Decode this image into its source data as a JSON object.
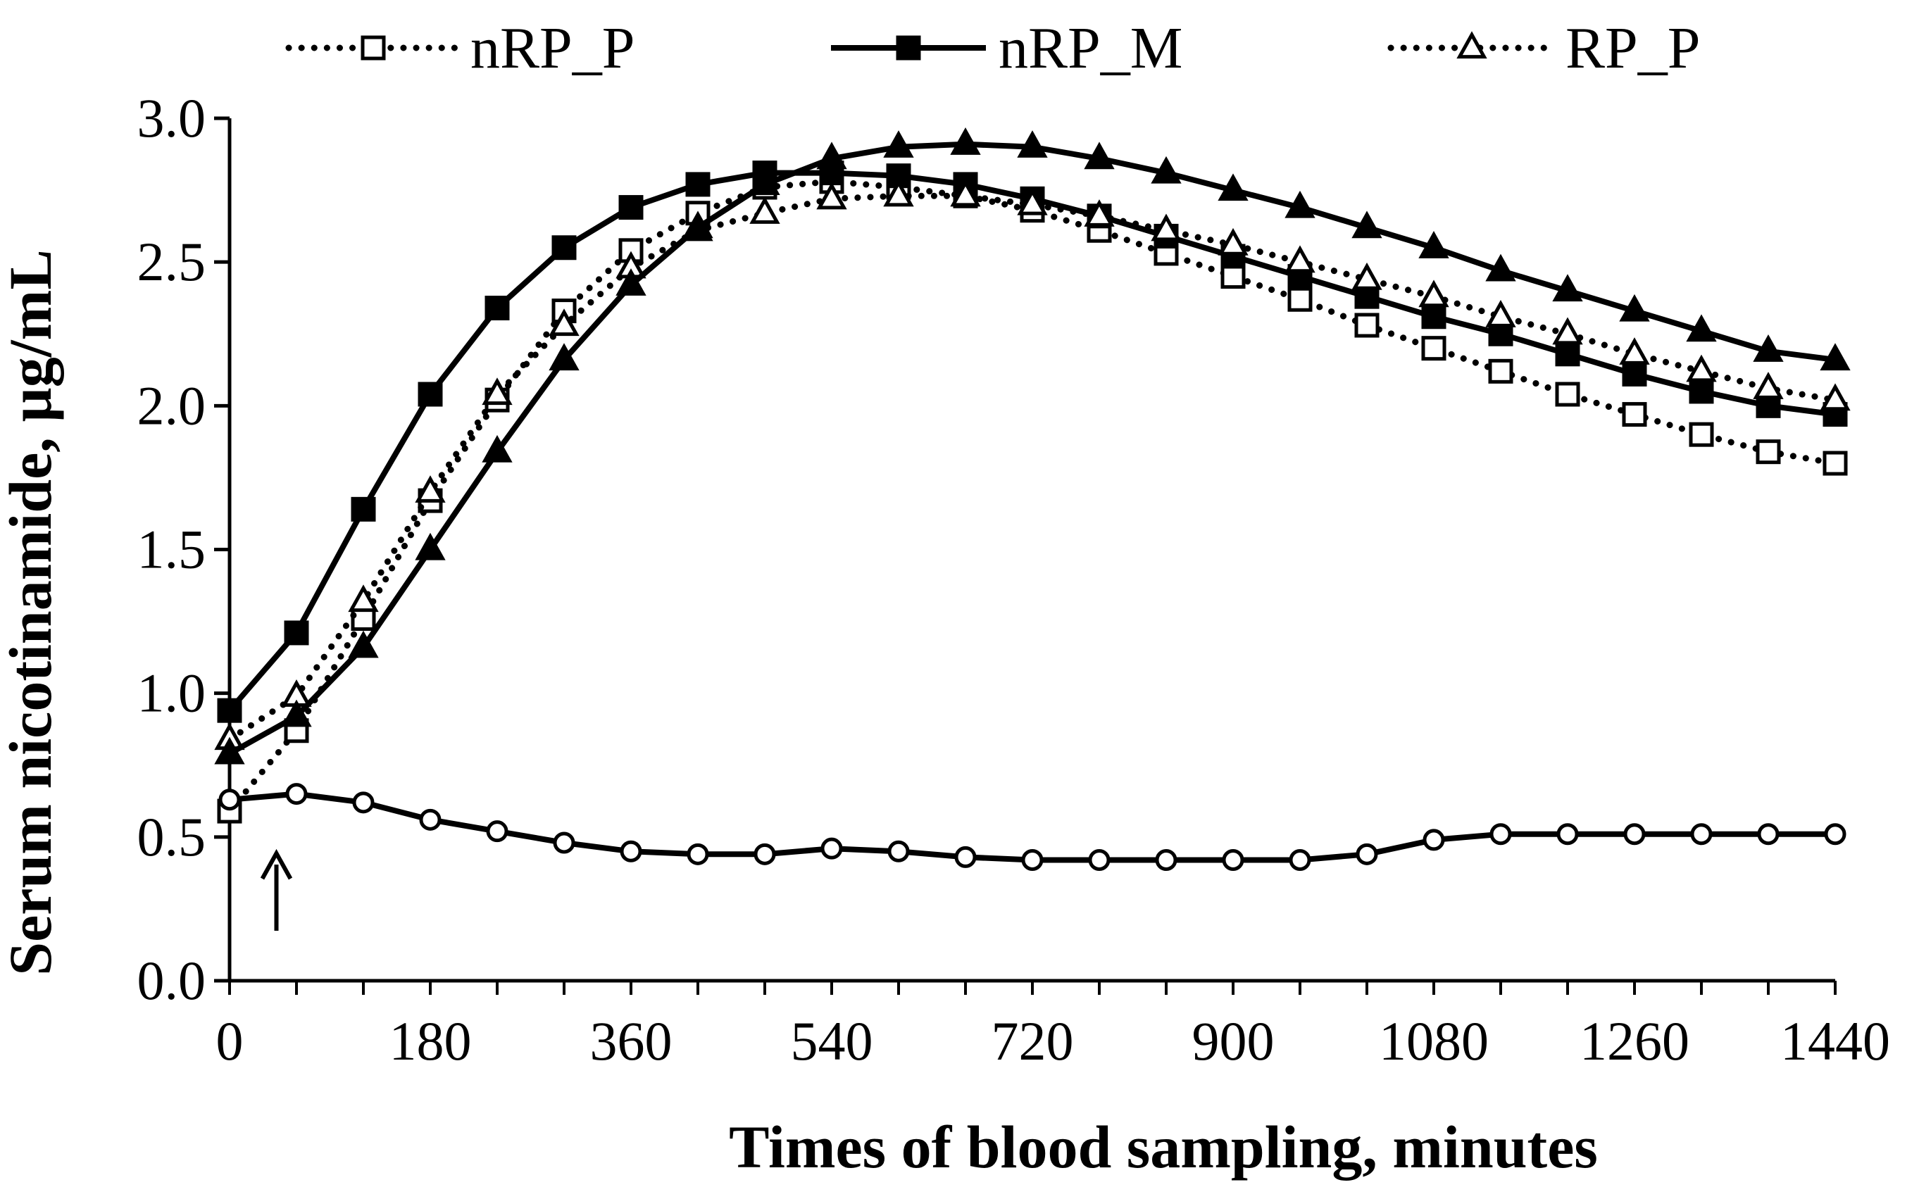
{
  "chart_data": {
    "type": "line",
    "title": "",
    "xlabel": "Times of blood sampling, minutes",
    "ylabel": "Serum nicotinamide, µg/mL",
    "xlim": [
      0,
      1440
    ],
    "ylim": [
      0,
      3.0
    ],
    "xticks": [
      0,
      180,
      360,
      540,
      720,
      900,
      1080,
      1260,
      1440
    ],
    "xtick_labels": [
      "0",
      "180",
      "360",
      "540",
      "720",
      "900",
      "1080",
      "1260",
      "1440"
    ],
    "yticks": [
      0,
      0.5,
      1.0,
      1.5,
      2.0,
      2.5,
      3.0
    ],
    "ytick_labels": [
      "0.0",
      "0.5",
      "1.0",
      "1.5",
      "2.0",
      "2.5",
      "3.0"
    ],
    "grid": false,
    "legend_position": "top",
    "annotation": "arrow at dosing time",
    "annotation_x": 42,
    "series": [
      {
        "name": "nRP_P",
        "line_style": "dotted",
        "marker": "open-square",
        "x": [
          0,
          60,
          120,
          180,
          240,
          300,
          360,
          420,
          480,
          540,
          600,
          660,
          720,
          780,
          840,
          900,
          960,
          1020,
          1080,
          1140,
          1200,
          1260,
          1320,
          1380,
          1440
        ],
        "values": [
          0.59,
          0.87,
          1.26,
          1.67,
          2.02,
          2.33,
          2.54,
          2.67,
          2.76,
          2.78,
          2.76,
          2.73,
          2.68,
          2.61,
          2.53,
          2.45,
          2.37,
          2.28,
          2.2,
          2.12,
          2.04,
          1.97,
          1.9,
          1.84,
          1.8
        ]
      },
      {
        "name": "nRP_M",
        "line_style": "solid",
        "marker": "filled-square",
        "x": [
          0,
          60,
          120,
          180,
          240,
          300,
          360,
          420,
          480,
          540,
          600,
          660,
          720,
          780,
          840,
          900,
          960,
          1020,
          1080,
          1140,
          1200,
          1260,
          1320,
          1380,
          1440
        ],
        "values": [
          0.94,
          1.21,
          1.64,
          2.04,
          2.34,
          2.55,
          2.69,
          2.77,
          2.81,
          2.81,
          2.8,
          2.77,
          2.72,
          2.66,
          2.59,
          2.52,
          2.45,
          2.38,
          2.31,
          2.25,
          2.18,
          2.11,
          2.05,
          2.0,
          1.97
        ]
      },
      {
        "name": "RP_P",
        "line_style": "dotted",
        "marker": "open-triangle",
        "x": [
          0,
          60,
          120,
          180,
          240,
          300,
          360,
          420,
          480,
          540,
          600,
          660,
          720,
          780,
          840,
          900,
          960,
          1020,
          1080,
          1140,
          1200,
          1260,
          1320,
          1380,
          1440
        ],
        "values": [
          0.84,
          0.99,
          1.32,
          1.7,
          2.04,
          2.28,
          2.48,
          2.61,
          2.67,
          2.72,
          2.73,
          2.73,
          2.7,
          2.66,
          2.61,
          2.56,
          2.5,
          2.44,
          2.38,
          2.31,
          2.25,
          2.18,
          2.12,
          2.06,
          2.02
        ]
      },
      {
        "name": "",
        "line_style": "solid",
        "marker": "filled-triangle",
        "x": [
          0,
          60,
          120,
          180,
          240,
          300,
          360,
          420,
          480,
          540,
          600,
          660,
          720,
          780,
          840,
          900,
          960,
          1020,
          1080,
          1140,
          1200,
          1260,
          1320,
          1380,
          1440
        ],
        "values": [
          0.79,
          0.92,
          1.16,
          1.5,
          1.84,
          2.16,
          2.42,
          2.62,
          2.77,
          2.86,
          2.9,
          2.91,
          2.9,
          2.86,
          2.81,
          2.75,
          2.69,
          2.62,
          2.55,
          2.47,
          2.4,
          2.33,
          2.26,
          2.19,
          2.16
        ]
      },
      {
        "name": "",
        "line_style": "solid",
        "marker": "open-circle",
        "x": [
          0,
          60,
          120,
          180,
          240,
          300,
          360,
          420,
          480,
          540,
          600,
          660,
          720,
          780,
          840,
          900,
          960,
          1020,
          1080,
          1140,
          1200,
          1260,
          1320,
          1380,
          1440
        ],
        "values": [
          0.63,
          0.65,
          0.62,
          0.56,
          0.52,
          0.48,
          0.45,
          0.44,
          0.44,
          0.46,
          0.45,
          0.43,
          0.42,
          0.42,
          0.42,
          0.42,
          0.42,
          0.44,
          0.49,
          0.51,
          0.51,
          0.51,
          0.51,
          0.51,
          0.51
        ]
      }
    ]
  }
}
